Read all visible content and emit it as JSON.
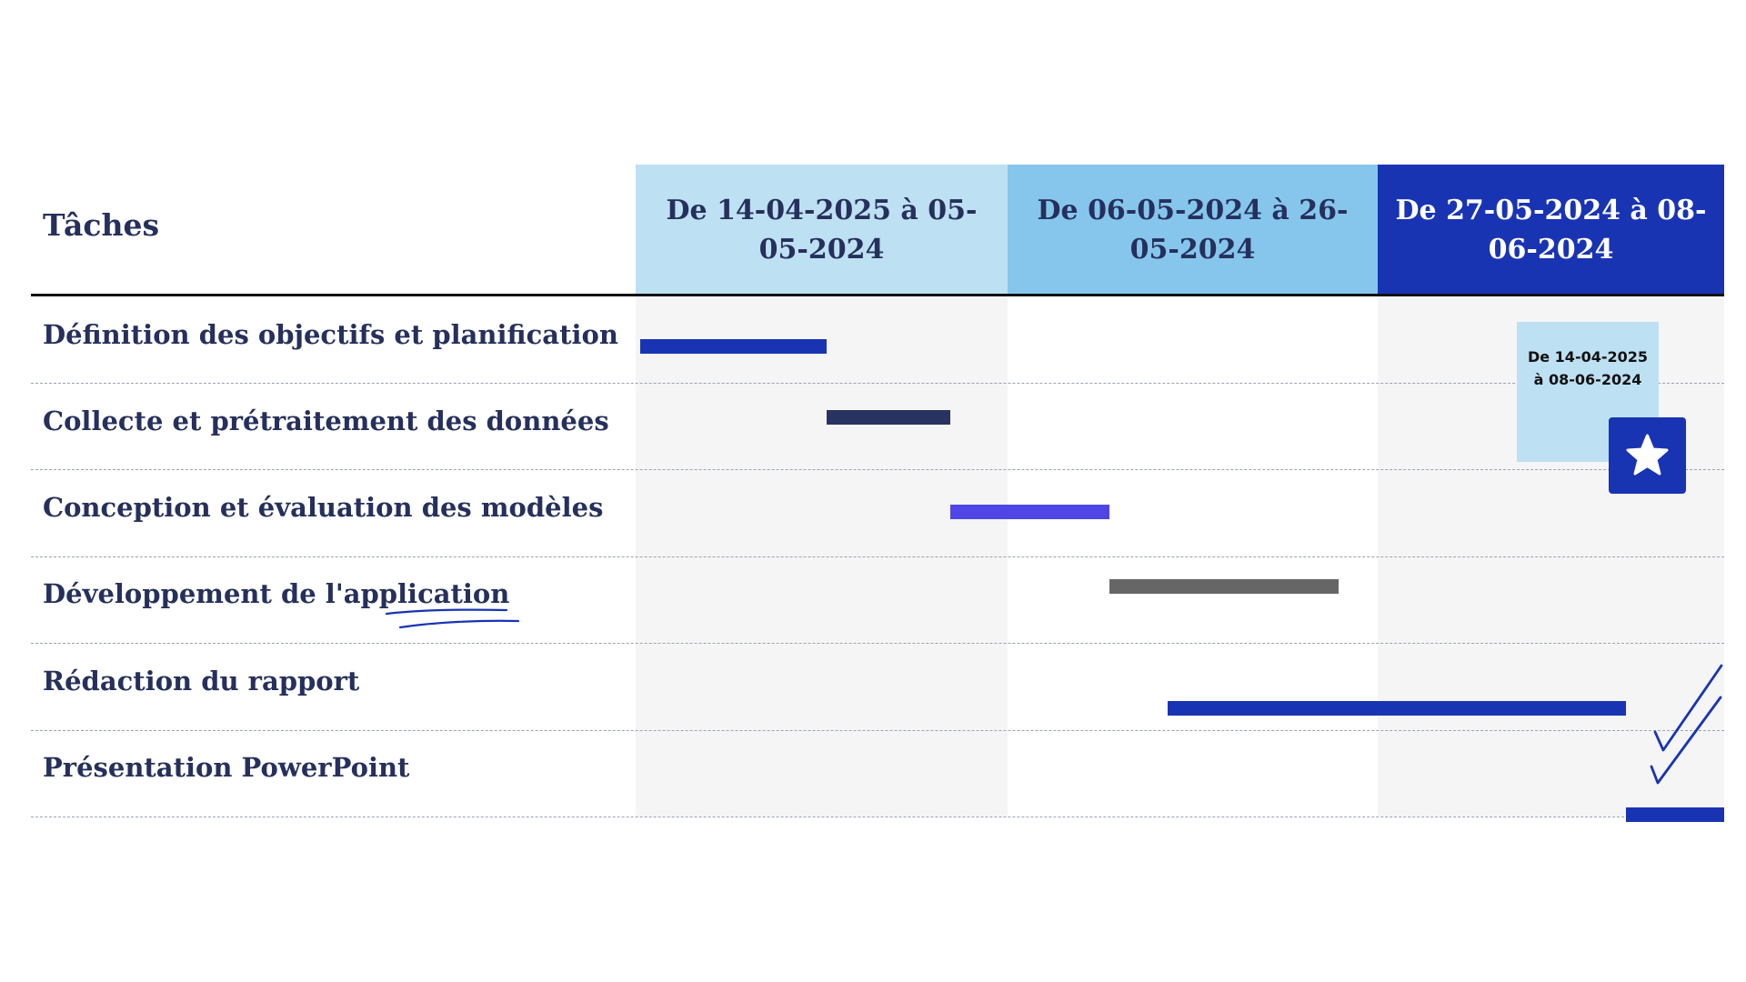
{
  "header": {
    "tasks_label": "Tâches",
    "periods": [
      "De 14-04-2025 à 05-05-2024",
      "De 06-05-2024 à 26-05-2024",
      "De 27-05-2024 à 08-06-2024"
    ]
  },
  "tasks": [
    "Définition des objectifs et planification",
    "Collecte et prétraitement des données",
    "Conception et évaluation des modèles",
    "Développement de l'application",
    "Rédaction du rapport",
    "Présentation PowerPoint"
  ],
  "note": {
    "line1": "De 14-04-2025",
    "line2": "à 08-06-2024",
    "icon": "star-icon"
  },
  "decorations": {
    "underline_icon": "scribble-underline",
    "check_icon": "double-check-icon"
  },
  "colors": {
    "navy_text": "#26305c",
    "light_blue": "#bde0f3",
    "mid_blue": "#86c6ec",
    "royal_blue": "#1934b3",
    "dark_navy_bar": "#283362",
    "violet_bar": "#4f46e5",
    "gray_bar": "#666666"
  }
}
